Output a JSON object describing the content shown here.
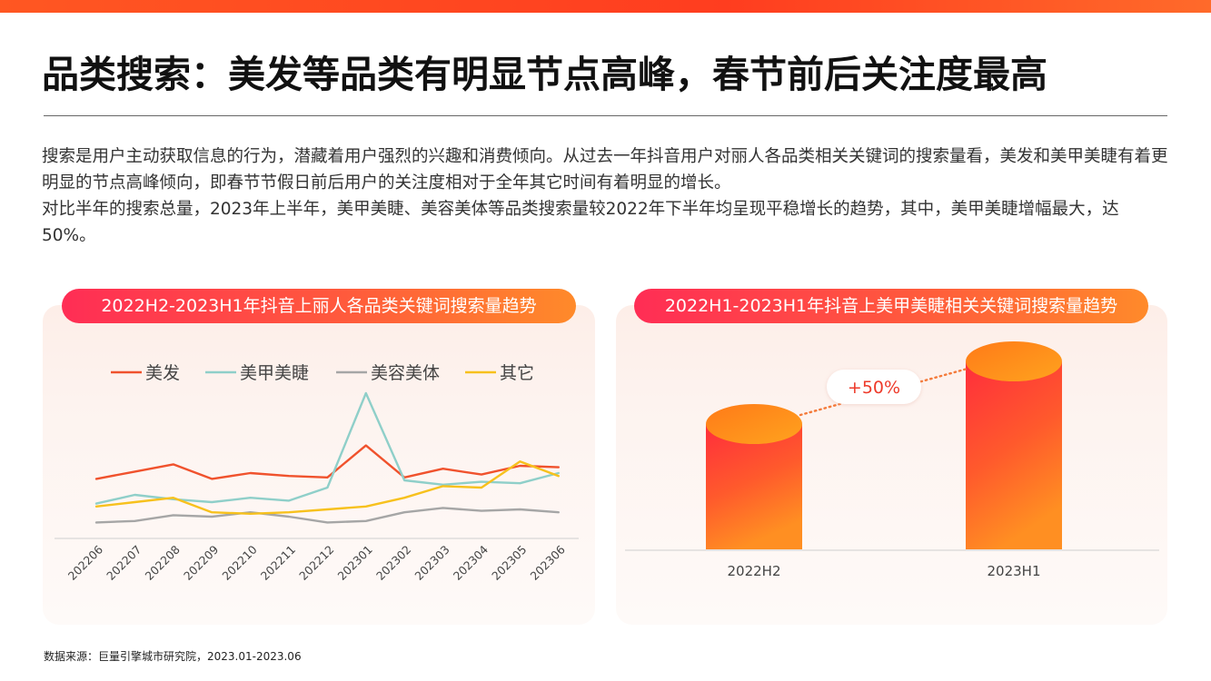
{
  "header": {
    "title": "品类搜索：美发等品类有明显节点高峰，春节前后关注度最高"
  },
  "body": {
    "paragraph1": "搜索是用户主动获取信息的行为，潜藏着用户强烈的兴趣和消费倾向。从过去一年抖音用户对丽人各品类相关关键词的搜索量看，美发和美甲美睫有着更明显的节点高峰倾向，即春节节假日前后用户的关注度相对于全年其它时间有着明显的增长。",
    "paragraph2": "对比半年的搜索总量，2023年上半年，美甲美睫、美容美体等品类搜索量较2022年下半年均呈现平稳增长的趋势，其中，美甲美睫增幅最大，达50%。"
  },
  "footer": {
    "source": "数据来源：巨量引擎城市研究院，2023.01-2023.06"
  },
  "colors": {
    "accent": "#ff3d1f",
    "meifa": "#f0522d",
    "meijia": "#8fcfc9",
    "meirong": "#a6a6a6",
    "qita": "#f7c11d"
  },
  "chart_data": [
    {
      "type": "line",
      "title": "2022H2-2023H1年抖音上丽人各品类关键词搜索量趋势",
      "legend_position": "top",
      "categories": [
        "202206",
        "202207",
        "202208",
        "202209",
        "202210",
        "202211",
        "202212",
        "202301",
        "202302",
        "202303",
        "202304",
        "202305",
        "202306"
      ],
      "ylim": [
        0,
        100
      ],
      "series": [
        {
          "name": "美发",
          "color": "#f0522d",
          "values": [
            41,
            46,
            51,
            41,
            45,
            43,
            42,
            64,
            42,
            48,
            44,
            50,
            49
          ]
        },
        {
          "name": "美甲美睫",
          "color": "#8fcfc9",
          "values": [
            24,
            30,
            27,
            25,
            28,
            26,
            35,
            100,
            40,
            37,
            39,
            38,
            45
          ]
        },
        {
          "name": "美容美体",
          "color": "#a6a6a6",
          "values": [
            11,
            12,
            16,
            15,
            18,
            15,
            11,
            12,
            18,
            21,
            19,
            20,
            18
          ]
        },
        {
          "name": "其它",
          "color": "#f7c11d",
          "values": [
            22,
            25,
            28,
            18,
            17,
            18,
            20,
            22,
            28,
            36,
            35,
            53,
            43
          ]
        }
      ]
    },
    {
      "type": "bar",
      "title": "2022H1-2023H1年抖音上美甲美睫相关关键词搜索量趋势",
      "categories": [
        "2022H2",
        "2023H1"
      ],
      "values": [
        100,
        150
      ],
      "ylim": [
        0,
        150
      ],
      "annotation": "+50%"
    }
  ]
}
